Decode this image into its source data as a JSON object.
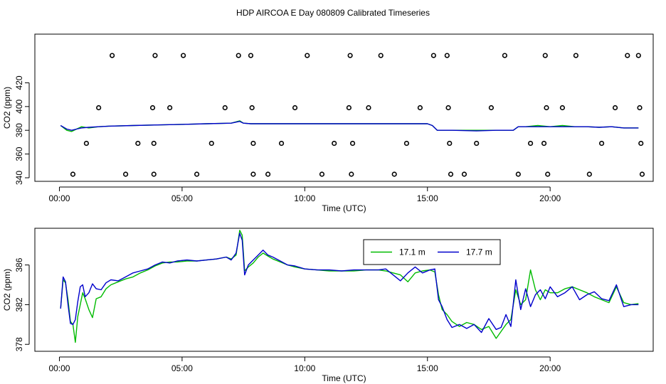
{
  "figure": {
    "title": "HDP AIRCOA E  Day 080809  Calibrated Timeseries"
  },
  "colors": {
    "series_green": "#00bb00",
    "series_blue": "#0000cc",
    "markers": "#000000",
    "frame": "#000000"
  },
  "chart_data": [
    {
      "type": "line",
      "xlabel": "Time (UTC)",
      "ylabel": "CO2 (ppm)",
      "xlim": [
        -1,
        24.2
      ],
      "ylim": [
        337,
        461
      ],
      "x_ticks": [
        0,
        5,
        10,
        15,
        20
      ],
      "x_tick_labels": [
        "00:00",
        "05:00",
        "10:00",
        "15:00",
        "20:00"
      ],
      "y_ticks": [
        340,
        360,
        380,
        400,
        420
      ],
      "y_tick_labels": [
        "340",
        "360",
        "380",
        "400",
        "420"
      ],
      "legend": "none",
      "grid": false,
      "series": [
        {
          "color": "#00bb00",
          "x": [
            0.05,
            0.3,
            0.5,
            0.7,
            0.9,
            1.2,
            1.6,
            2.0,
            3.0,
            4.0,
            5.0,
            6.0,
            7.0,
            7.35,
            7.5,
            7.8,
            8.5,
            9.0,
            10.0,
            11.0,
            12.0,
            13.0,
            14.0,
            15.0,
            15.2,
            15.4,
            16.0,
            17.0,
            17.8,
            18.5,
            18.7,
            19.0,
            19.5,
            20.0,
            20.5,
            21.0,
            21.5,
            22.0,
            22.5,
            23.0,
            23.6
          ],
          "y": [
            384,
            380,
            379,
            381,
            383,
            382,
            383,
            383.5,
            384,
            384.5,
            385,
            385.5,
            386,
            388,
            386,
            385.5,
            385.5,
            385.5,
            385.5,
            385.5,
            385.5,
            385.5,
            385.5,
            385.5,
            384,
            380,
            380,
            380,
            380,
            380,
            383,
            383,
            384,
            383,
            384,
            383,
            383,
            382.5,
            383,
            382,
            382
          ]
        },
        {
          "color": "#0000cc",
          "x": [
            0.05,
            0.3,
            0.5,
            0.7,
            0.9,
            1.2,
            1.6,
            2.0,
            3.0,
            4.0,
            5.0,
            6.0,
            7.0,
            7.35,
            7.5,
            7.8,
            8.5,
            9.0,
            10.0,
            11.0,
            12.0,
            13.0,
            14.0,
            15.0,
            15.2,
            15.4,
            16.0,
            17.0,
            17.8,
            18.5,
            18.7,
            19.0,
            19.5,
            20.0,
            20.5,
            21.0,
            21.5,
            22.0,
            22.5,
            23.0,
            23.6
          ],
          "y": [
            384,
            381,
            380,
            381,
            382,
            382.5,
            383,
            383.5,
            384,
            384.5,
            385,
            385.5,
            386,
            387.5,
            386,
            385.5,
            385.5,
            385.5,
            385.5,
            385.5,
            385.5,
            385.5,
            385.5,
            385.5,
            384,
            380,
            380,
            379.5,
            380,
            380,
            383,
            383,
            383,
            383,
            383,
            383,
            383,
            382.5,
            383,
            382,
            382
          ]
        }
      ],
      "calibration_points": {
        "x": [
          0.55,
          1.1,
          1.6,
          2.15,
          2.7,
          3.2,
          3.8,
          3.85,
          3.85,
          3.9,
          4.5,
          5.05,
          5.6,
          6.2,
          6.75,
          7.3,
          7.8,
          7.85,
          7.9,
          7.9,
          8.5,
          9.05,
          9.6,
          10.1,
          10.7,
          11.2,
          11.8,
          11.85,
          11.9,
          11.95,
          12.6,
          13.1,
          13.65,
          14.15,
          14.7,
          15.25,
          15.8,
          15.85,
          15.9,
          15.95,
          16.5,
          17.0,
          17.6,
          18.15,
          18.7,
          19.2,
          19.75,
          19.8,
          19.85,
          19.9,
          20.5,
          21.05,
          21.6,
          22.1,
          22.65,
          23.15,
          23.6,
          23.65,
          23.7,
          23.75
        ],
        "y": [
          343,
          369,
          399,
          443,
          343,
          369,
          399,
          369,
          343,
          443,
          399,
          443,
          343,
          369,
          399,
          443,
          443,
          399,
          369,
          343,
          343,
          369,
          399,
          443,
          343,
          369,
          399,
          443,
          343,
          369,
          399,
          443,
          343,
          369,
          399,
          443,
          443,
          399,
          369,
          343,
          343,
          369,
          399,
          443,
          343,
          369,
          369,
          443,
          399,
          343,
          399,
          443,
          343,
          369,
          399,
          443,
          443,
          399,
          369,
          343
        ]
      }
    },
    {
      "type": "line",
      "xlabel": "Time (UTC)",
      "ylabel": "CO2 (ppm)",
      "xlim": [
        -1,
        24.2
      ],
      "ylim": [
        377.3,
        389.7
      ],
      "x_ticks": [
        0,
        5,
        10,
        15,
        20
      ],
      "x_tick_labels": [
        "00:00",
        "05:00",
        "10:00",
        "15:00",
        "20:00"
      ],
      "y_ticks": [
        378,
        382,
        386
      ],
      "y_tick_labels": [
        "378",
        "382",
        "386"
      ],
      "legend": "top-right",
      "grid": false,
      "series": [
        {
          "name": "17.1 m",
          "color": "#00bb00",
          "x": [
            0.05,
            0.15,
            0.25,
            0.35,
            0.45,
            0.55,
            0.65,
            0.75,
            0.85,
            0.95,
            1.05,
            1.2,
            1.35,
            1.5,
            1.7,
            1.9,
            2.1,
            2.4,
            2.7,
            3.0,
            3.3,
            3.6,
            3.9,
            4.2,
            4.5,
            4.8,
            5.2,
            5.6,
            6.0,
            6.4,
            6.8,
            7.0,
            7.2,
            7.35,
            7.45,
            7.55,
            7.7,
            7.9,
            8.1,
            8.3,
            8.5,
            8.7,
            9.0,
            9.3,
            9.6,
            10.0,
            10.5,
            11.0,
            11.5,
            12.0,
            12.5,
            13.0,
            13.3,
            13.6,
            13.9,
            14.2,
            14.5,
            14.8,
            15.1,
            15.3,
            15.45,
            15.6,
            15.8,
            16.0,
            16.3,
            16.6,
            16.9,
            17.2,
            17.5,
            17.8,
            18.0,
            18.2,
            18.4,
            18.6,
            18.8,
            19.0,
            19.2,
            19.4,
            19.6,
            19.8,
            20.0,
            20.3,
            20.6,
            20.9,
            21.2,
            21.5,
            21.8,
            22.1,
            22.4,
            22.7,
            23.0,
            23.3,
            23.6
          ],
          "y": [
            381.6,
            384.5,
            384.2,
            382.5,
            380.3,
            380.0,
            378.2,
            380.8,
            382.0,
            383.2,
            382.6,
            381.5,
            380.7,
            382.6,
            382.8,
            383.6,
            384.0,
            384.3,
            384.6,
            384.8,
            385.2,
            385.5,
            385.9,
            386.2,
            386.3,
            386.3,
            386.4,
            386.4,
            386.5,
            386.6,
            386.8,
            386.6,
            387.0,
            389.5,
            389.0,
            385.4,
            385.8,
            386.2,
            386.8,
            387.2,
            386.9,
            386.6,
            386.3,
            386.0,
            385.8,
            385.6,
            385.5,
            385.4,
            385.4,
            385.4,
            385.5,
            385.5,
            385.4,
            385.2,
            385.0,
            384.3,
            385.2,
            385.4,
            385.5,
            385.3,
            383.0,
            381.5,
            381.0,
            380.3,
            379.8,
            380.2,
            380.0,
            379.5,
            379.8,
            378.6,
            379.3,
            380.0,
            380.5,
            383.5,
            382.0,
            382.5,
            385.5,
            383.5,
            382.5,
            383.5,
            383.2,
            383.2,
            383.6,
            383.8,
            383.5,
            383.2,
            382.8,
            382.5,
            382.2,
            383.8,
            382.2,
            382.0,
            382.1
          ]
        },
        {
          "name": "17.7 m",
          "color": "#0000cc",
          "x": [
            0.05,
            0.15,
            0.25,
            0.35,
            0.45,
            0.55,
            0.65,
            0.75,
            0.85,
            0.95,
            1.05,
            1.2,
            1.35,
            1.5,
            1.7,
            1.9,
            2.1,
            2.4,
            2.7,
            3.0,
            3.3,
            3.6,
            3.9,
            4.2,
            4.5,
            4.8,
            5.2,
            5.6,
            6.0,
            6.4,
            6.8,
            7.0,
            7.2,
            7.35,
            7.45,
            7.55,
            7.7,
            7.9,
            8.1,
            8.3,
            8.5,
            8.7,
            9.0,
            9.3,
            9.6,
            10.0,
            10.5,
            11.0,
            11.5,
            12.0,
            12.5,
            13.0,
            13.3,
            13.6,
            13.9,
            14.2,
            14.5,
            14.8,
            15.1,
            15.3,
            15.45,
            15.6,
            15.8,
            16.0,
            16.3,
            16.6,
            16.9,
            17.2,
            17.5,
            17.8,
            18.0,
            18.2,
            18.4,
            18.6,
            18.8,
            19.0,
            19.2,
            19.4,
            19.6,
            19.8,
            20.0,
            20.3,
            20.6,
            20.9,
            21.2,
            21.5,
            21.8,
            22.1,
            22.4,
            22.7,
            23.0,
            23.3,
            23.6
          ],
          "y": [
            381.6,
            384.8,
            384.3,
            382.0,
            380.1,
            380.0,
            380.5,
            382.3,
            383.8,
            384.0,
            382.8,
            383.2,
            384.1,
            383.6,
            383.5,
            384.2,
            384.5,
            384.4,
            384.8,
            385.2,
            385.4,
            385.6,
            386.0,
            386.3,
            386.2,
            386.4,
            386.5,
            386.4,
            386.5,
            386.6,
            386.8,
            386.5,
            387.2,
            389.2,
            388.5,
            385.0,
            386.0,
            386.5,
            387.0,
            387.5,
            387.0,
            386.8,
            386.4,
            386.0,
            385.9,
            385.6,
            385.5,
            385.5,
            385.4,
            385.5,
            385.5,
            385.5,
            385.6,
            385.0,
            384.4,
            385.2,
            385.8,
            385.2,
            385.5,
            385.6,
            382.5,
            381.8,
            380.5,
            379.7,
            380.0,
            379.6,
            380.0,
            379.2,
            380.6,
            379.5,
            379.7,
            381.0,
            379.8,
            384.5,
            381.5,
            383.6,
            381.8,
            383.0,
            383.5,
            382.6,
            383.8,
            382.8,
            383.2,
            383.8,
            382.5,
            383.0,
            383.3,
            382.6,
            382.4,
            384.0,
            381.8,
            382.0,
            382.0
          ]
        }
      ]
    }
  ]
}
